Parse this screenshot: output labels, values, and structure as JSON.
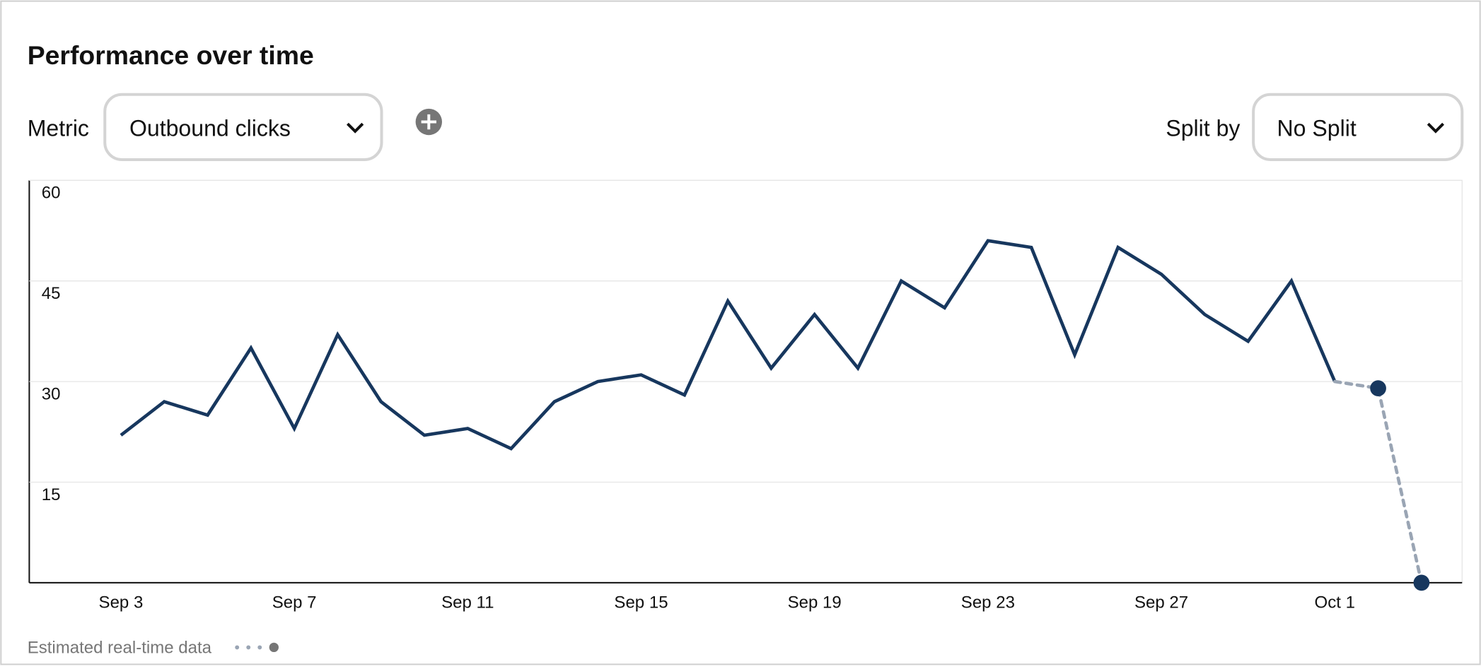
{
  "header": {
    "title": "Performance over time"
  },
  "controls": {
    "metric_label": "Metric",
    "metric_value": "Outbound clicks",
    "split_label": "Split by",
    "split_value": "No Split"
  },
  "chart_data": {
    "type": "line",
    "categories": [
      "Sep 3",
      null,
      null,
      null,
      "Sep 7",
      null,
      null,
      null,
      "Sep 11",
      null,
      null,
      null,
      "Sep 15",
      null,
      null,
      null,
      "Sep 19",
      null,
      null,
      null,
      "Sep 23",
      null,
      null,
      null,
      "Sep 27",
      null,
      null,
      null,
      "Oct 1",
      null,
      null
    ],
    "series": [
      {
        "color": "#17375e",
        "values": [
          22,
          27,
          25,
          35,
          23,
          37,
          27,
          22,
          23,
          20,
          27,
          30,
          31,
          28,
          42,
          32,
          40,
          32,
          45,
          41,
          51,
          50,
          34,
          50,
          46,
          40,
          36,
          45,
          30,
          null,
          null
        ]
      },
      {
        "name": "Estimated real-time data",
        "color": "#9aa5b4",
        "dashed": true,
        "values": [
          null,
          null,
          null,
          null,
          null,
          null,
          null,
          null,
          null,
          null,
          null,
          null,
          null,
          null,
          null,
          null,
          null,
          null,
          null,
          null,
          null,
          null,
          null,
          null,
          null,
          null,
          null,
          null,
          30,
          29,
          0
        ]
      }
    ],
    "ylim": [
      0,
      60
    ],
    "yticks": [
      15,
      30,
      45,
      60
    ],
    "grid": true
  }
}
